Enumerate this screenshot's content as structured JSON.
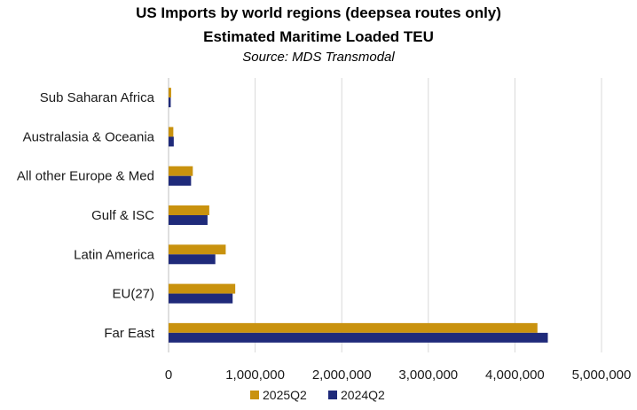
{
  "chart_data": {
    "type": "bar",
    "orientation": "horizontal",
    "title": "US Imports by world regions (deepsea routes only)",
    "subtitle": "Estimated Maritime Loaded TEU",
    "source": "Source: MDS Transmodal",
    "categories": [
      "Far East",
      "EU(27)",
      "Latin America",
      "Gulf & ISC",
      "All other Europe & Med",
      "Australasia & Oceania",
      "Sub Saharan Africa"
    ],
    "series": [
      {
        "name": "2025Q2",
        "color": "#C9920E",
        "values": [
          4260000,
          770000,
          660000,
          470000,
          280000,
          55000,
          30000
        ]
      },
      {
        "name": "2024Q2",
        "color": "#1F2A7A",
        "values": [
          4380000,
          740000,
          540000,
          450000,
          260000,
          60000,
          25000
        ]
      }
    ],
    "xlim": [
      0,
      5000000
    ],
    "xticks": [
      0,
      1000000,
      2000000,
      3000000,
      4000000,
      5000000
    ],
    "xtick_labels": [
      "0",
      "1,000,000",
      "2,000,000",
      "3,000,000",
      "4,000,000",
      "5,000,000"
    ],
    "grid": true,
    "legend_position": "bottom",
    "xlabel": "",
    "ylabel": ""
  }
}
